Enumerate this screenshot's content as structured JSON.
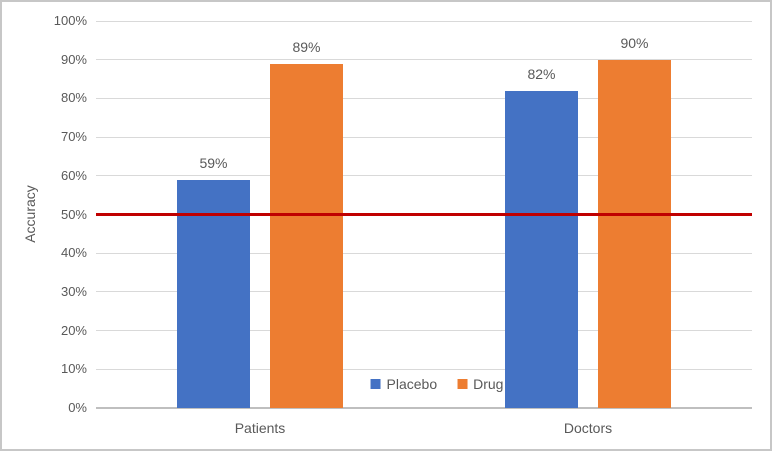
{
  "chart_data": {
    "type": "bar",
    "title": "",
    "ylabel": "Accuracy",
    "xlabel": "",
    "categories": [
      "Patients",
      "Doctors"
    ],
    "series": [
      {
        "name": "Placebo",
        "color": "#4472C4",
        "values": [
          59,
          82
        ],
        "labels": [
          "59%",
          "82%"
        ]
      },
      {
        "name": "Drug",
        "color": "#ED7D31",
        "values": [
          89,
          90
        ],
        "labels": [
          "89%",
          "90%"
        ]
      }
    ],
    "ylim": [
      0,
      100
    ],
    "ytick_step": 10,
    "ytick_labels": [
      "0%",
      "10%",
      "20%",
      "30%",
      "40%",
      "50%",
      "60%",
      "70%",
      "80%",
      "90%",
      "100%"
    ],
    "grid": true,
    "reference_line": {
      "value": 50,
      "color": "#C00000"
    },
    "legend": {
      "position": "inside-bottom-center",
      "items": [
        "Placebo",
        "Drug"
      ]
    },
    "style_colors": {
      "gridline": "#D9D9D9",
      "axis_line": "#BFBFBF",
      "tick_text": "#595959",
      "label_text": "#595959"
    }
  }
}
